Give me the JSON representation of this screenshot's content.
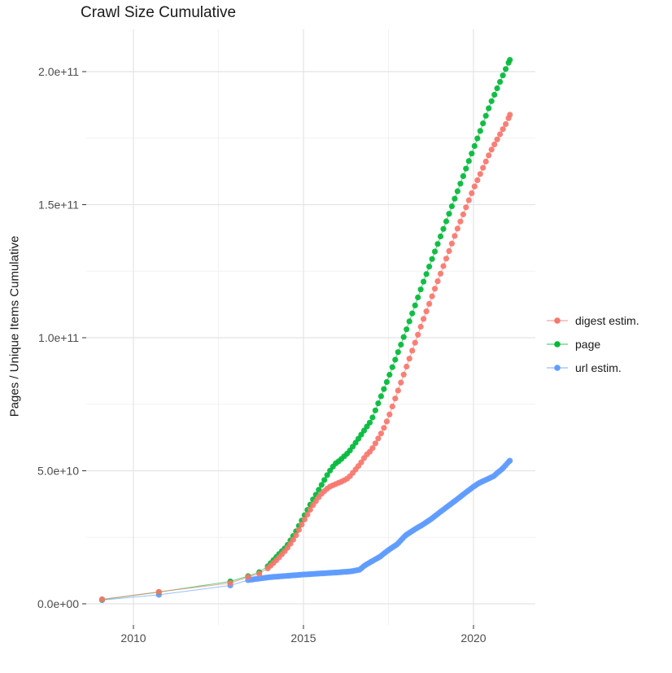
{
  "chart_data": {
    "type": "line",
    "title": "Crawl Size Cumulative",
    "xlabel": "",
    "ylabel": "Pages / Unique Items Cumulative",
    "legend_position": "right",
    "grid": "major+minor",
    "background": "#ffffff",
    "grid_major_color": "#e4e4e4",
    "grid_minor_color": "#f2f2f2",
    "tick_label_color": "#4d4d4d",
    "x_axis": {
      "range": [
        2008.6,
        2021.85
      ],
      "tick_values": [
        2010,
        2015,
        2020
      ],
      "tick_labels": [
        "2010",
        "2015",
        "2020"
      ],
      "minor_tick_values": [
        2012.5,
        2017.5
      ]
    },
    "y_axis": {
      "range_billions": [
        -8,
        216
      ],
      "tick_values_billions": [
        0,
        50,
        100,
        150,
        200
      ],
      "tick_labels": [
        "0.0e+00",
        "5.0e+10",
        "1.0e+11",
        "1.5e+11",
        "2.0e+11"
      ],
      "minor_tick_values_billions": [
        25,
        75,
        125,
        175
      ]
    },
    "series": [
      {
        "name": "digest estim.",
        "color": "#F8766D",
        "draw_order": 3,
        "sparse_until": 2013.95,
        "dot_step_years": 0.0833,
        "values_unit": "billions of unique items (1e9)",
        "anchors": [
          [
            2009.08,
            1.7
          ],
          [
            2010.75,
            4.5
          ],
          [
            2012.85,
            7.8
          ],
          [
            2013.37,
            10.1
          ],
          [
            2013.7,
            11.3
          ],
          [
            2013.95,
            13.3
          ],
          [
            2014.25,
            17.0
          ],
          [
            2014.5,
            20.5
          ],
          [
            2014.75,
            25.0
          ],
          [
            2015.0,
            31.0
          ],
          [
            2015.25,
            36.5
          ],
          [
            2015.5,
            41.0
          ],
          [
            2015.75,
            43.9
          ],
          [
            2016.0,
            45.3
          ],
          [
            2016.17,
            46.2
          ],
          [
            2016.33,
            47.4
          ],
          [
            2016.5,
            50.0
          ],
          [
            2016.67,
            52.6
          ],
          [
            2016.83,
            55.7
          ],
          [
            2017.0,
            57.8
          ],
          [
            2017.17,
            61.5
          ],
          [
            2017.33,
            65.1
          ],
          [
            2017.5,
            70.0
          ],
          [
            2018.0,
            88.0
          ],
          [
            2018.5,
            106.0
          ],
          [
            2019.0,
            123.0
          ],
          [
            2019.5,
            140.0
          ],
          [
            2020.0,
            156.0
          ],
          [
            2020.5,
            170.0
          ],
          [
            2021.0,
            181.5
          ],
          [
            2021.07,
            183.8
          ]
        ]
      },
      {
        "name": "page",
        "color": "#00BA38",
        "draw_order": 2,
        "sparse_until": 2013.95,
        "dot_step_years": 0.0833,
        "values_unit": "billions of pages (1e9)",
        "anchors": [
          [
            2009.08,
            1.6
          ],
          [
            2010.75,
            4.4
          ],
          [
            2012.85,
            8.4
          ],
          [
            2013.37,
            10.4
          ],
          [
            2013.7,
            11.9
          ],
          [
            2013.95,
            14.1
          ],
          [
            2014.25,
            18.3
          ],
          [
            2014.5,
            21.5
          ],
          [
            2014.75,
            26.5
          ],
          [
            2015.0,
            32.5
          ],
          [
            2015.25,
            38.5
          ],
          [
            2015.5,
            44.0
          ],
          [
            2015.75,
            49.5
          ],
          [
            2015.92,
            52.5
          ],
          [
            2016.08,
            54.0
          ],
          [
            2016.33,
            57.0
          ],
          [
            2016.58,
            61.4
          ],
          [
            2016.83,
            66.0
          ],
          [
            2017.0,
            69.0
          ],
          [
            2017.25,
            77.0
          ],
          [
            2017.5,
            85.0
          ],
          [
            2018.0,
            102.0
          ],
          [
            2018.5,
            120.0
          ],
          [
            2019.0,
            137.0
          ],
          [
            2019.5,
            154.0
          ],
          [
            2020.0,
            171.0
          ],
          [
            2020.5,
            188.0
          ],
          [
            2021.0,
            202.5
          ],
          [
            2021.07,
            204.4
          ]
        ]
      },
      {
        "name": "url estim.",
        "color": "#619CFF",
        "draw_order": 1,
        "sparse_until": 2013.4,
        "dot_step_years": 0.055,
        "values_unit": "billions of unique URLs (1e9)",
        "anchors": [
          [
            2009.08,
            1.4
          ],
          [
            2010.75,
            3.4
          ],
          [
            2012.85,
            6.9
          ],
          [
            2013.37,
            8.9
          ],
          [
            2013.7,
            9.5
          ],
          [
            2014.0,
            10.0
          ],
          [
            2014.3,
            10.3
          ],
          [
            2014.6,
            10.6
          ],
          [
            2015.0,
            11.0
          ],
          [
            2015.5,
            11.4
          ],
          [
            2016.0,
            11.8
          ],
          [
            2016.4,
            12.2
          ],
          [
            2016.65,
            12.8
          ],
          [
            2016.8,
            14.4
          ],
          [
            2017.0,
            15.9
          ],
          [
            2017.25,
            17.7
          ],
          [
            2017.5,
            20.2
          ],
          [
            2017.75,
            22.3
          ],
          [
            2018.0,
            25.7
          ],
          [
            2018.25,
            27.8
          ],
          [
            2018.5,
            29.7
          ],
          [
            2018.75,
            31.8
          ],
          [
            2019.0,
            34.3
          ],
          [
            2019.25,
            36.7
          ],
          [
            2019.5,
            39.1
          ],
          [
            2019.75,
            41.6
          ],
          [
            2020.0,
            44.0
          ],
          [
            2020.15,
            45.3
          ],
          [
            2020.3,
            46.2
          ],
          [
            2020.45,
            47.1
          ],
          [
            2020.6,
            48.0
          ],
          [
            2020.7,
            49.2
          ],
          [
            2020.8,
            50.2
          ],
          [
            2020.9,
            51.4
          ],
          [
            2021.0,
            52.9
          ],
          [
            2021.07,
            53.8
          ]
        ]
      }
    ]
  }
}
